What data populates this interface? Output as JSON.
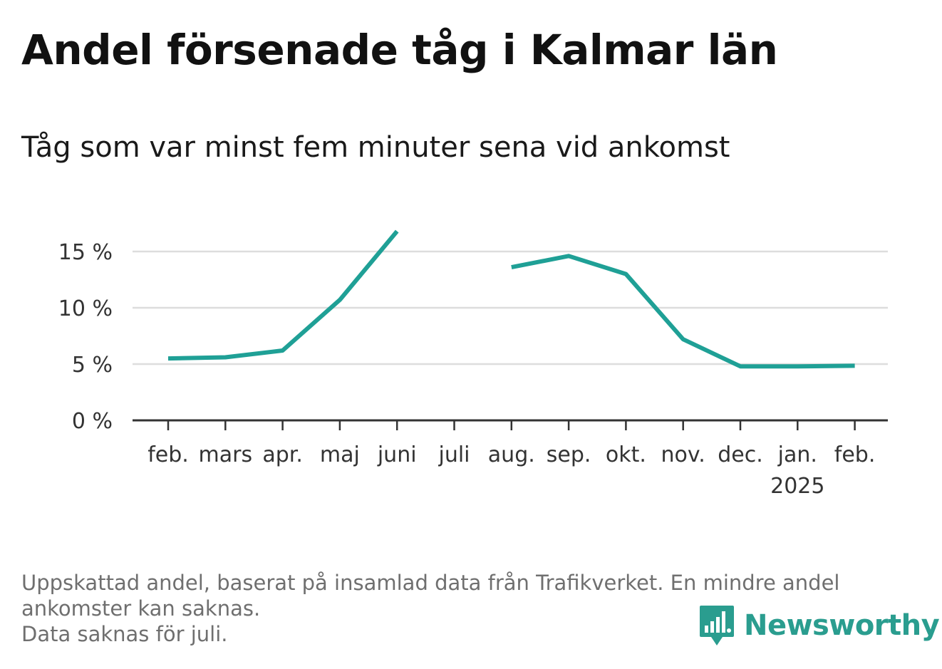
{
  "title": "Andel försenade tåg i Kalmar län",
  "subtitle": "Tåg som var minst fem minuter sena vid ankomst",
  "footnote": [
    "Uppskattad andel, baserat på insamlad data från Trafikverket. En mindre andel",
    "ankomster kan saknas.",
    "Data saknas för juli."
  ],
  "logo": {
    "text": "Newsworthy",
    "icon": "bar-chart-speech-bubble-icon",
    "color": "#2a9d8f"
  },
  "colors": {
    "line": "#1fa096",
    "grid": "#dddddd",
    "axis": "#333333"
  },
  "chart_data": {
    "type": "line",
    "title": "Andel försenade tåg i Kalmar län",
    "subtitle": "Tåg som var minst fem minuter sena vid ankomst",
    "xlabel": "",
    "ylabel": "",
    "categories": [
      "feb.",
      "mars",
      "apr.",
      "maj",
      "juni",
      "juli",
      "aug.",
      "sep.",
      "okt.",
      "nov.",
      "dec.",
      "jan.",
      "feb."
    ],
    "category_sublabels": [
      "",
      "",
      "",
      "",
      "",
      "",
      "",
      "",
      "",
      "",
      "",
      "2025",
      ""
    ],
    "series": [
      {
        "values": [
          5.5,
          5.6,
          6.2,
          10.7,
          16.8,
          null,
          13.6,
          14.6,
          13.0,
          7.2,
          4.8,
          4.8,
          4.85
        ]
      }
    ],
    "ylim": [
      0,
      17
    ],
    "yticks": [
      0,
      5,
      10,
      15
    ],
    "ytick_labels": [
      "0 %",
      "5 %",
      "10 %",
      "15 %"
    ],
    "grid": true,
    "legend": "none"
  }
}
